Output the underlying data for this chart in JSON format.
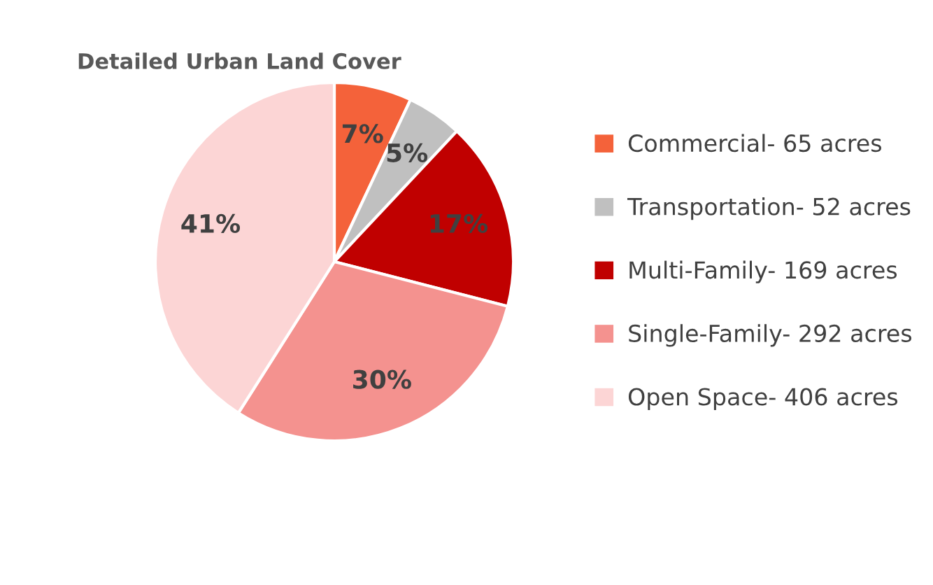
{
  "chart_data": {
    "type": "pie",
    "title": "Detailed Urban Land Cover",
    "categories": [
      "Commercial- 65 acres",
      "Transportation- 52 acres",
      "Multi-Family- 169 acres",
      "Single-Family- 292 acres",
      "Open Space- 406 acres"
    ],
    "values": [
      7,
      5,
      17,
      30,
      41
    ],
    "colors": [
      "#f4623a",
      "#c0c0c0",
      "#c00000",
      "#f4928f",
      "#fcd5d5"
    ],
    "value_labels": [
      "7%",
      "5%",
      "17%",
      "30%",
      "41%"
    ],
    "legend": "right"
  }
}
